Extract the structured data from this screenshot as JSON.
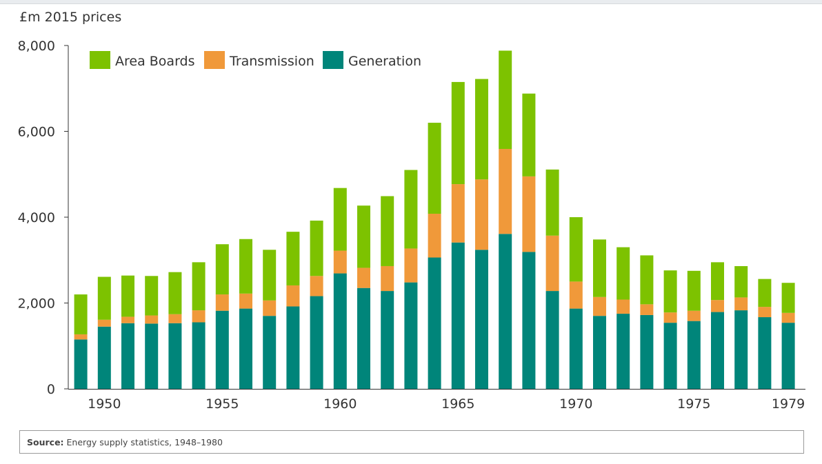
{
  "y_unit_label": "£m 2015 prices",
  "source": {
    "label": "Source:",
    "text": "Energy supply statistics, 1948–1980"
  },
  "colors": {
    "area_boards": "#7DC200",
    "transmission": "#F0993A",
    "generation": "#00857A",
    "axis": "#333333"
  },
  "chart_data": {
    "type": "bar",
    "stacked": true,
    "title": "",
    "xlabel": "",
    "ylabel": "£m 2015 prices",
    "ylim": [
      0,
      8000
    ],
    "yticks": [
      0,
      2000,
      4000,
      6000,
      8000
    ],
    "ytick_labels": [
      "0",
      "2,000",
      "4,000",
      "6,000",
      "8,000"
    ],
    "xtick_labels": [
      "1950",
      "1955",
      "1960",
      "1965",
      "1970",
      "1975",
      "1979"
    ],
    "legend": "top-left",
    "grid": false,
    "categories": [
      "1949",
      "1950",
      "1951",
      "1952",
      "1953",
      "1954",
      "1955",
      "1956",
      "1957",
      "1958",
      "1959",
      "1960",
      "1961",
      "1962",
      "1963",
      "1964",
      "1965",
      "1966",
      "1967",
      "1968",
      "1969",
      "1970",
      "1971",
      "1972",
      "1973",
      "1974",
      "1975",
      "1976",
      "1977",
      "1978",
      "1979"
    ],
    "series": [
      {
        "name": "Generation",
        "color_key": "generation",
        "values": [
          1150,
          1450,
          1530,
          1520,
          1530,
          1550,
          1820,
          1870,
          1700,
          1920,
          2160,
          2690,
          2350,
          2280,
          2480,
          3060,
          3410,
          3240,
          3610,
          3190,
          2280,
          1870,
          1700,
          1750,
          1720,
          1540,
          1580,
          1790,
          1830,
          1670,
          1540
        ]
      },
      {
        "name": "Transmission",
        "color_key": "transmission",
        "values": [
          120,
          160,
          150,
          190,
          210,
          280,
          380,
          350,
          360,
          490,
          470,
          530,
          470,
          580,
          790,
          1020,
          1360,
          1640,
          1980,
          1760,
          1290,
          630,
          440,
          330,
          250,
          240,
          240,
          280,
          300,
          240,
          230
        ]
      },
      {
        "name": "Area Boards",
        "color_key": "area_boards",
        "values": [
          930,
          1000,
          960,
          920,
          980,
          1120,
          1170,
          1270,
          1180,
          1250,
          1290,
          1460,
          1450,
          1630,
          1830,
          2120,
          2380,
          2340,
          2290,
          1930,
          1540,
          1500,
          1340,
          1220,
          1140,
          980,
          930,
          880,
          730,
          650,
          700
        ]
      }
    ],
    "legend_order": [
      "Area Boards",
      "Transmission",
      "Generation"
    ]
  }
}
